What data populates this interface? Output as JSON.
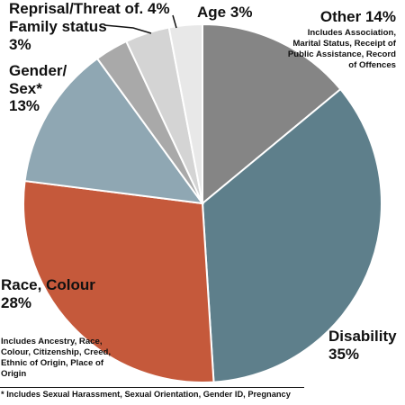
{
  "chart_data": {
    "type": "pie",
    "slices": [
      {
        "label": "Other",
        "pct": "14%",
        "value": 14,
        "color": "#858585"
      },
      {
        "label": "Disability",
        "pct": "35%",
        "value": 35,
        "color": "#5e7f8b"
      },
      {
        "label": "Race, Colour",
        "pct": "28%",
        "value": 28,
        "color": "#c5593b"
      },
      {
        "label": "Gender/ Sex*",
        "pct": "13%",
        "value": 13,
        "color": "#8fa7b3"
      },
      {
        "label": "Family status",
        "pct": "3%",
        "value": 3,
        "color": "#a9a9a9"
      },
      {
        "label": "Reprisal/Threat of.",
        "pct": "4%",
        "value": 4,
        "color": "#d4d4d4"
      },
      {
        "label": "Age",
        "pct": "3%",
        "value": 3,
        "color": "#e8e8e8"
      }
    ],
    "notes": {
      "other": "Includes Association, Marital Status, Receipt of Public Assistance, Record of Offences",
      "race": "Includes Ancestry, Race, Colour, Citizenship, Creed, Ethnic of Origin, Place of Origin"
    },
    "footnote": "* Includes Sexual Harassment, Sexual Orientation, Gender ID, Pregnancy"
  }
}
